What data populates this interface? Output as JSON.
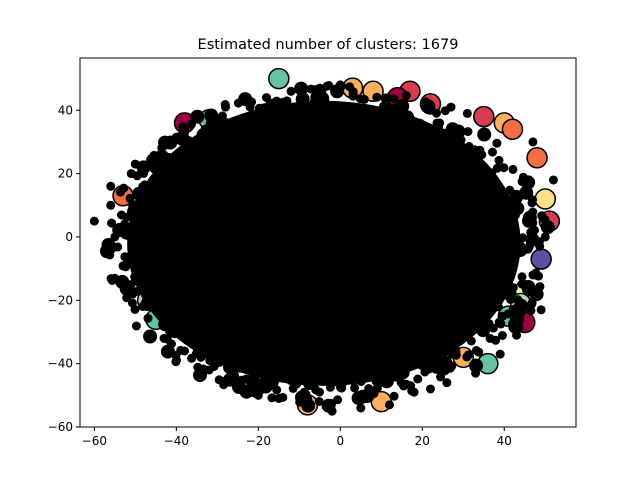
{
  "chart_data": {
    "type": "scatter",
    "title": "Estimated number of clusters: 1679",
    "xlabel": "",
    "ylabel": "",
    "xlim": [
      -63.5,
      57.5
    ],
    "ylim": [
      -60,
      56.5
    ],
    "xticks": [
      -60,
      -40,
      -20,
      0,
      20,
      40
    ],
    "yticks": [
      -60,
      -40,
      -20,
      0,
      20,
      40
    ],
    "grid": false,
    "legend": "none",
    "n_clusters": 1679,
    "point_shape": "ellipse",
    "point_center": [
      -3,
      -3
    ],
    "point_radii": [
      54,
      51
    ],
    "core_marker_color": "#000000",
    "cluster_colors": [
      "#9e0142",
      "#d53e4f",
      "#f46d43",
      "#fdae61",
      "#fee08b",
      "#e6f598",
      "#abdda4",
      "#66c2a5",
      "#3288bd",
      "#5e4fa2"
    ],
    "edge_highlights": [
      {
        "x": -15,
        "y": 50,
        "color": "#66c2a5"
      },
      {
        "x": 3,
        "y": 47,
        "color": "#fdae61"
      },
      {
        "x": 8,
        "y": 46,
        "color": "#fdae61"
      },
      {
        "x": 17,
        "y": 46,
        "color": "#d53e4f"
      },
      {
        "x": 14,
        "y": 44,
        "color": "#9e0142"
      },
      {
        "x": 22,
        "y": 42,
        "color": "#d53e4f"
      },
      {
        "x": 35,
        "y": 38,
        "color": "#d53e4f"
      },
      {
        "x": 40,
        "y": 36,
        "color": "#fdae61"
      },
      {
        "x": 42,
        "y": 34,
        "color": "#f46d43"
      },
      {
        "x": -38,
        "y": 36,
        "color": "#9e0142"
      },
      {
        "x": -32,
        "y": 37,
        "color": "#66c2a5"
      },
      {
        "x": 48,
        "y": 25,
        "color": "#f46d43"
      },
      {
        "x": 50,
        "y": 12,
        "color": "#fee08b"
      },
      {
        "x": 51,
        "y": 5,
        "color": "#d53e4f"
      },
      {
        "x": 49,
        "y": -7,
        "color": "#5e4fa2"
      },
      {
        "x": 45,
        "y": -17,
        "color": "#e6f598"
      },
      {
        "x": 44,
        "y": -21,
        "color": "#abdda4"
      },
      {
        "x": 45,
        "y": -27,
        "color": "#9e0142"
      },
      {
        "x": 41,
        "y": -25,
        "color": "#66c2a5"
      },
      {
        "x": 36,
        "y": -40,
        "color": "#66c2a5"
      },
      {
        "x": 30,
        "y": -38,
        "color": "#fdae61"
      },
      {
        "x": -47,
        "y": -20,
        "color": "#abdda4"
      },
      {
        "x": -45,
        "y": -26,
        "color": "#66c2a5"
      },
      {
        "x": -46,
        "y": -17,
        "color": "#fee08b"
      },
      {
        "x": -40,
        "y": -21,
        "color": "#3288bd"
      },
      {
        "x": -8,
        "y": -53,
        "color": "#fdae61"
      },
      {
        "x": 10,
        "y": -52,
        "color": "#fdae61"
      },
      {
        "x": -53,
        "y": 13,
        "color": "#f46d43"
      }
    ],
    "edge_points": [
      {
        "x": -60,
        "y": 5
      },
      {
        "x": -57,
        "y": -2
      },
      {
        "x": -56,
        "y": 16
      },
      {
        "x": -51,
        "y": 20
      },
      {
        "x": -52,
        "y": -8
      },
      {
        "x": -48,
        "y": -8
      },
      {
        "x": -56,
        "y": 10
      },
      {
        "x": -50,
        "y": 23
      },
      {
        "x": -45,
        "y": 25
      },
      {
        "x": -55,
        "y": 0
      },
      {
        "x": -41,
        "y": 30
      },
      {
        "x": -38,
        "y": 33
      },
      {
        "x": -28,
        "y": 41
      },
      {
        "x": -22,
        "y": 41
      },
      {
        "x": -18,
        "y": 44
      },
      {
        "x": -12,
        "y": 46
      },
      {
        "x": -5,
        "y": 47
      },
      {
        "x": 0,
        "y": 48
      },
      {
        "x": 27,
        "y": 41
      },
      {
        "x": 31,
        "y": 39
      },
      {
        "x": 47,
        "y": 30
      },
      {
        "x": 52,
        "y": 18
      },
      {
        "x": 50,
        "y": 0
      },
      {
        "x": 47,
        "y": -12
      },
      {
        "x": 49,
        "y": -23
      },
      {
        "x": 43,
        "y": -31
      },
      {
        "x": 39,
        "y": -37
      },
      {
        "x": 33,
        "y": -43
      },
      {
        "x": 26,
        "y": -46
      },
      {
        "x": 18,
        "y": -49
      },
      {
        "x": 5,
        "y": -54
      },
      {
        "x": -2,
        "y": -55
      },
      {
        "x": -15,
        "y": -51
      },
      {
        "x": -25,
        "y": -47
      },
      {
        "x": -32,
        "y": -42
      },
      {
        "x": -38,
        "y": -36
      },
      {
        "x": -43,
        "y": -32
      },
      {
        "x": -51,
        "y": -15
      },
      {
        "x": -34,
        "y": -38
      },
      {
        "x": -20,
        "y": -50
      },
      {
        "x": 12,
        "y": -53
      },
      {
        "x": 22,
        "y": -48
      }
    ]
  }
}
